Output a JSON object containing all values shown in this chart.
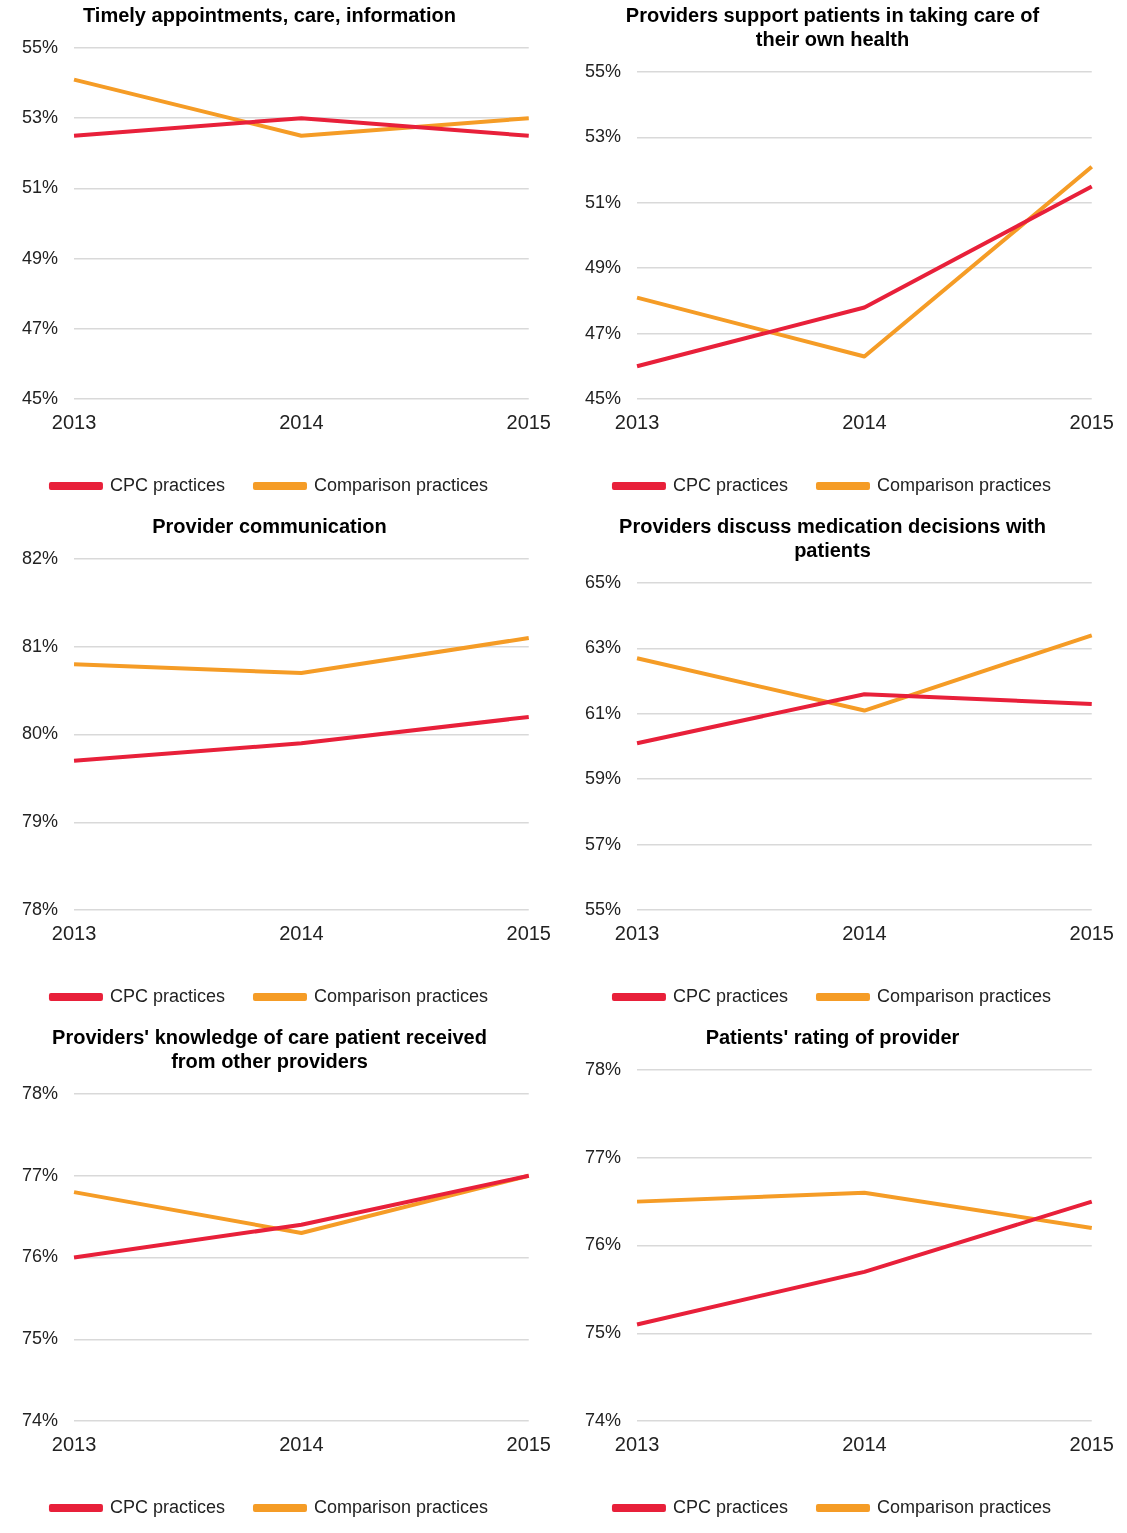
{
  "chart_data": [
    {
      "type": "line",
      "title": "Timely appointments, care, information",
      "categories": [
        "2013",
        "2014",
        "2015"
      ],
      "series": [
        {
          "name": "CPC practices",
          "color": "#e8203a",
          "values": [
            52.5,
            53.0,
            52.5
          ]
        },
        {
          "name": "Comparison practices",
          "color": "#f59c26",
          "values": [
            54.1,
            52.5,
            53.0
          ]
        }
      ],
      "ylim": [
        45,
        55
      ],
      "yticks": [
        {
          "value": 45,
          "label": "45%"
        },
        {
          "value": 47,
          "label": "47%"
        },
        {
          "value": 49,
          "label": "49%"
        },
        {
          "value": 51,
          "label": "51%"
        },
        {
          "value": 53,
          "label": "53%"
        },
        {
          "value": 55,
          "label": "55%"
        }
      ],
      "grid": "y",
      "legend": "bottom",
      "marker": "none",
      "line_style": "solid"
    },
    {
      "type": "line",
      "title": "Providers support patients in taking care of their own health",
      "categories": [
        "2013",
        "2014",
        "2015"
      ],
      "series": [
        {
          "name": "CPC practices",
          "color": "#e8203a",
          "values": [
            46.0,
            47.8,
            51.5
          ]
        },
        {
          "name": "Comparison practices",
          "color": "#f59c26",
          "values": [
            48.1,
            46.3,
            52.1
          ]
        }
      ],
      "ylim": [
        45,
        55
      ],
      "yticks": [
        {
          "value": 45,
          "label": "45%"
        },
        {
          "value": 47,
          "label": "47%"
        },
        {
          "value": 49,
          "label": "49%"
        },
        {
          "value": 51,
          "label": "51%"
        },
        {
          "value": 53,
          "label": "53%"
        },
        {
          "value": 55,
          "label": "55%"
        }
      ],
      "grid": "y",
      "legend": "bottom",
      "marker": "none",
      "line_style": "solid"
    },
    {
      "type": "line",
      "title": "Provider communication",
      "categories": [
        "2013",
        "2014",
        "2015"
      ],
      "series": [
        {
          "name": "CPC practices",
          "color": "#e8203a",
          "values": [
            79.7,
            79.9,
            80.2
          ]
        },
        {
          "name": "Comparison practices",
          "color": "#f59c26",
          "values": [
            80.8,
            80.7,
            81.1
          ]
        }
      ],
      "ylim": [
        78,
        82
      ],
      "yticks": [
        {
          "value": 78,
          "label": "78%"
        },
        {
          "value": 79,
          "label": "79%"
        },
        {
          "value": 80,
          "label": "80%"
        },
        {
          "value": 81,
          "label": "81%"
        },
        {
          "value": 82,
          "label": "82%"
        }
      ],
      "grid": "y",
      "legend": "bottom",
      "marker": "none",
      "line_style": "solid"
    },
    {
      "type": "line",
      "title": "Providers discuss medication decisions with patients",
      "categories": [
        "2013",
        "2014",
        "2015"
      ],
      "series": [
        {
          "name": "CPC practices",
          "color": "#e8203a",
          "values": [
            60.1,
            61.6,
            61.3
          ]
        },
        {
          "name": "Comparison practices",
          "color": "#f59c26",
          "values": [
            62.7,
            61.1,
            63.4
          ]
        }
      ],
      "ylim": [
        55,
        65
      ],
      "yticks": [
        {
          "value": 55,
          "label": "55%"
        },
        {
          "value": 57,
          "label": "57%"
        },
        {
          "value": 59,
          "label": "59%"
        },
        {
          "value": 61,
          "label": "61%"
        },
        {
          "value": 63,
          "label": "63%"
        },
        {
          "value": 65,
          "label": "65%"
        }
      ],
      "grid": "y",
      "legend": "bottom",
      "marker": "none",
      "line_style": "solid"
    },
    {
      "type": "line",
      "title": "Providers' knowledge of care patient received from other providers",
      "categories": [
        "2013",
        "2014",
        "2015"
      ],
      "series": [
        {
          "name": "CPC practices",
          "color": "#e8203a",
          "values": [
            76.0,
            76.4,
            77.0
          ]
        },
        {
          "name": "Comparison practices",
          "color": "#f59c26",
          "values": [
            76.8,
            76.3,
            77.0
          ]
        }
      ],
      "ylim": [
        74,
        78
      ],
      "yticks": [
        {
          "value": 74,
          "label": "74%"
        },
        {
          "value": 75,
          "label": "75%"
        },
        {
          "value": 76,
          "label": "76%"
        },
        {
          "value": 77,
          "label": "77%"
        },
        {
          "value": 78,
          "label": "78%"
        }
      ],
      "grid": "y",
      "legend": "bottom",
      "marker": "none",
      "line_style": "solid"
    },
    {
      "type": "line",
      "title": "Patients' rating of provider",
      "categories": [
        "2013",
        "2014",
        "2015"
      ],
      "series": [
        {
          "name": "CPC practices",
          "color": "#e8203a",
          "values": [
            75.1,
            75.7,
            76.5
          ]
        },
        {
          "name": "Comparison practices",
          "color": "#f59c26",
          "values": [
            76.5,
            76.6,
            76.2
          ]
        }
      ],
      "ylim": [
        74,
        78
      ],
      "yticks": [
        {
          "value": 74,
          "label": "74%"
        },
        {
          "value": 75,
          "label": "75%"
        },
        {
          "value": 76,
          "label": "76%"
        },
        {
          "value": 77,
          "label": "77%"
        },
        {
          "value": 78,
          "label": "78%"
        }
      ],
      "grid": "y",
      "legend": "bottom",
      "marker": "none",
      "line_style": "solid"
    }
  ]
}
